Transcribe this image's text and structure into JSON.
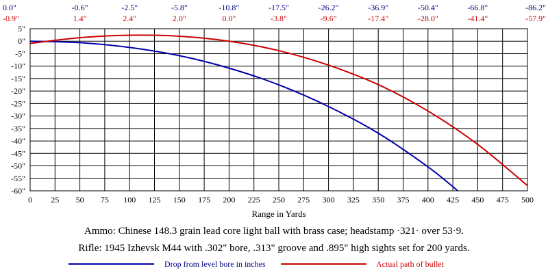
{
  "chart_data": {
    "type": "line",
    "xlabel": "Range in Yards",
    "x_ticks": [
      0,
      25,
      50,
      75,
      100,
      125,
      150,
      175,
      200,
      225,
      250,
      275,
      300,
      325,
      350,
      375,
      400,
      425,
      450,
      475,
      500
    ],
    "xlim": [
      0,
      500
    ],
    "y_ticks": [
      5,
      0,
      -5,
      -10,
      -15,
      -20,
      -25,
      -30,
      -35,
      -40,
      -45,
      -50,
      -55,
      -60
    ],
    "y_tick_labels": [
      "5\"",
      "0\"",
      "-5\"",
      "-10\"",
      "-15\"",
      "-20\"",
      "-25\"",
      "-30\"",
      "-35\"",
      "-40\"",
      "-45\"",
      "-50\"",
      "-55\"",
      "-60\""
    ],
    "ylim": [
      -60,
      5
    ],
    "grid": true,
    "top_row_drop": [
      "0.0\"",
      "-0.6\"",
      "-2.5\"",
      "-5.8\"",
      "-10.8\"",
      "-17.5\"",
      "-26.2\"",
      "-36.9\"",
      "-50.4\"",
      "-66.8\"",
      "-86.2\""
    ],
    "top_row_path": [
      "-0.9\"",
      "1.4\"",
      "2.4\"",
      "2.0\"",
      "0.0\"",
      "-3.8\"",
      "-9.6\"",
      "-17.4\"",
      "-28.0\"",
      "-41.4\"",
      "-57.9\""
    ],
    "top_row_x": [
      0,
      50,
      100,
      150,
      200,
      250,
      300,
      350,
      400,
      450,
      500
    ],
    "series": [
      {
        "name": "Drop from level bore in inches",
        "color": "#0000aa",
        "x": [
          0,
          50,
          100,
          150,
          200,
          250,
          300,
          350,
          400,
          430
        ],
        "values": [
          0.0,
          -0.6,
          -2.5,
          -5.8,
          -10.8,
          -17.5,
          -26.2,
          -36.9,
          -50.4,
          -60.0
        ]
      },
      {
        "name": "Actual path of bullet",
        "color": "#cc0000",
        "x": [
          0,
          50,
          100,
          150,
          200,
          250,
          300,
          350,
          400,
          450,
          500
        ],
        "values": [
          -0.9,
          1.4,
          2.4,
          2.0,
          0.0,
          -3.8,
          -9.6,
          -17.4,
          -28.0,
          -41.4,
          -57.9
        ]
      }
    ]
  },
  "captions": {
    "ammo": "Ammo:  Chinese 148.3 grain lead core light ball with brass case; headstamp ·321· over 53·9.",
    "rifle": "Rifle:  1945 Izhevsk M44 with .302\" bore, .313\" groove and .895\" high sights set for 200 yards."
  }
}
